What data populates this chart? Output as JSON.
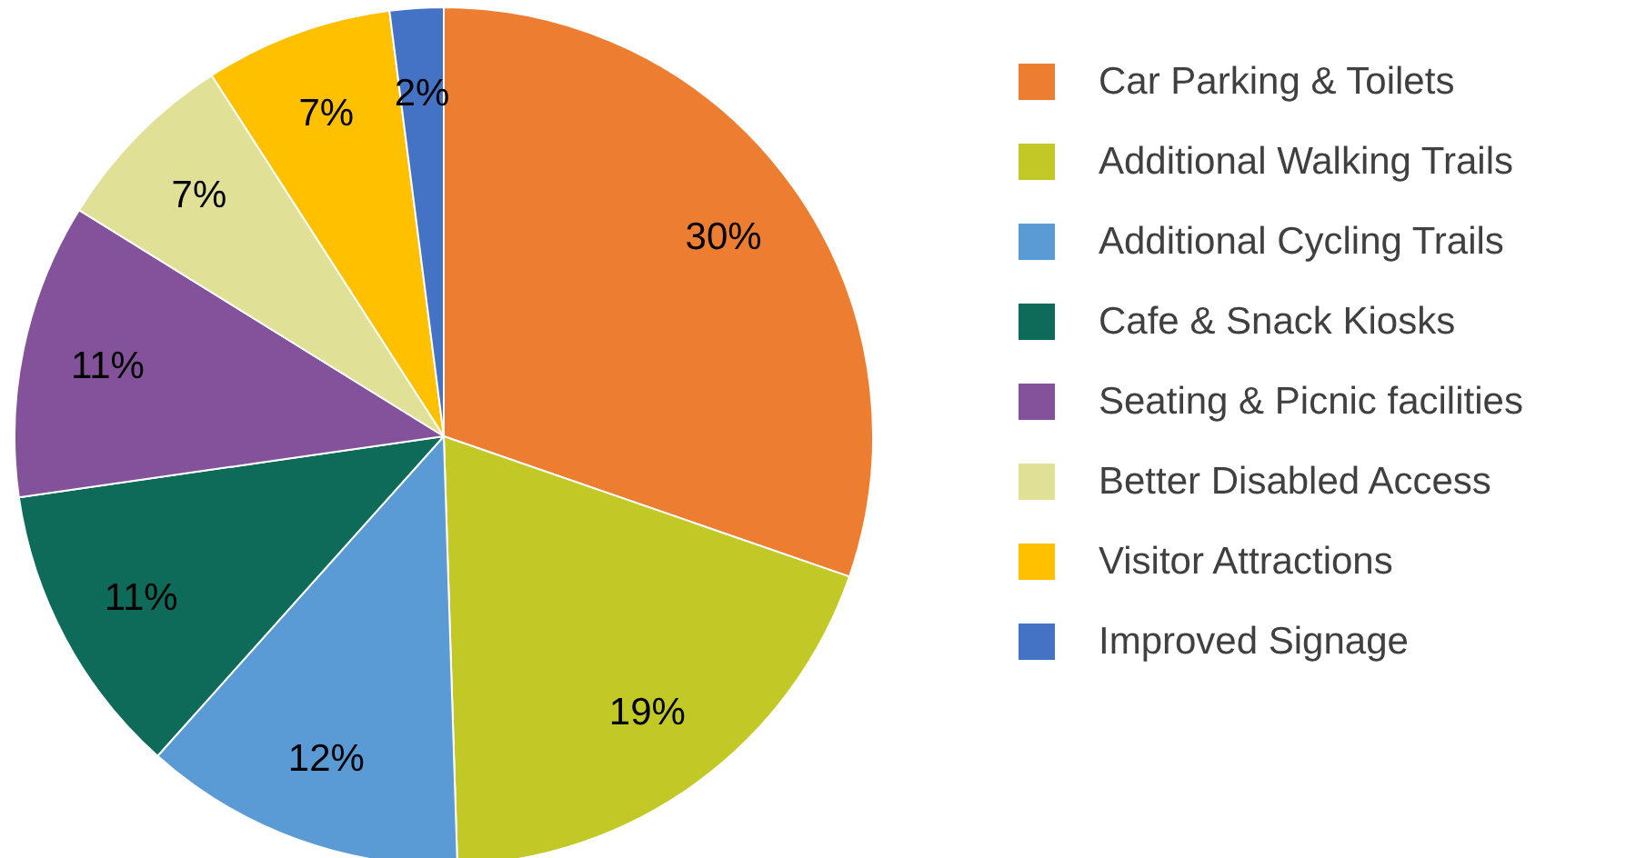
{
  "chart_data": {
    "type": "pie",
    "categories": [
      "Car Parking & Toilets",
      "Additional Walking Trails",
      "Additional Cycling Trails",
      "Cafe & Snack Kiosks",
      "Seating & Picnic facilities",
      "Better Disabled Access",
      "Visitor Attractions",
      "Improved Signage"
    ],
    "values": [
      30,
      19,
      12,
      11,
      11,
      7,
      7,
      2
    ],
    "colors": [
      "#ed7d31",
      "#c2c826",
      "#5b9bd5",
      "#0e6b5a",
      "#84529a",
      "#e0e096",
      "#ffc000",
      "#4472c4"
    ],
    "value_labels": [
      "30%",
      "19%",
      "12%",
      "11%",
      "11%",
      "7%",
      "7%",
      "2%"
    ],
    "legend": "right"
  }
}
